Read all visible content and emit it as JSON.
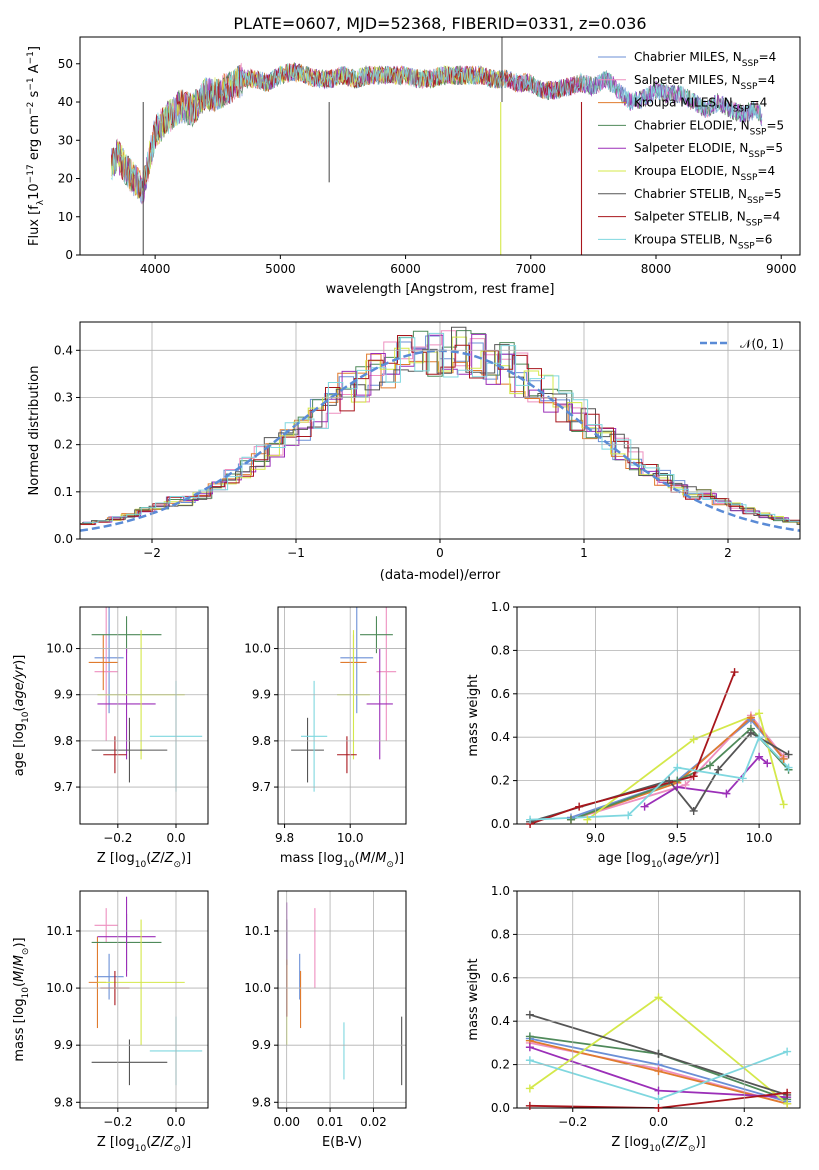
{
  "figure_title": "PLATE=0607, MJD=52368, FIBERID=0331, z=0.036",
  "colors": {
    "Chabrier MILES": "#6b8fd6",
    "Salpeter MILES": "#ee8fbf",
    "Kroupa MILES": "#e07b2e",
    "Chabrier ELODIE": "#4f8a5a",
    "Salpeter ELODIE": "#9b2fb8",
    "Kroupa ELODIE": "#d4e84a",
    "Chabrier STELIB": "#555555",
    "Salpeter STELIB": "#a8161c",
    "Kroupa STELIB": "#7fd7df",
    "Normal": "#5a8bd6"
  },
  "chart_data": [
    {
      "id": "spectrum",
      "type": "line",
      "title": "PLATE=0607, MJD=52368, FIBERID=0331, z=0.036",
      "xlabel": "wavelength [Angstrom, rest frame]",
      "ylabel": "Flux [f_λ 10^-17 erg cm^-2 s^-1 A^-1]",
      "xlim": [
        3400,
        9150
      ],
      "ylim": [
        0,
        57
      ],
      "xticks": [
        4000,
        5000,
        6000,
        7000,
        8000,
        9000
      ],
      "yticks": [
        0,
        10,
        20,
        30,
        40,
        50
      ],
      "grid": false,
      "legend_position": "top-right",
      "legend": [
        "Chabrier MILES, N_SSP=4",
        "Salpeter MILES, N_SSP=4",
        "Kroupa MILES, N_SSP=4",
        "Chabrier ELODIE, N_SSP=5",
        "Salpeter ELODIE, N_SSP=5",
        "Kroupa ELODIE, N_SSP=4",
        "Chabrier STELIB, N_SSP=5",
        "Salpeter STELIB, N_SSP=4",
        "Kroupa STELIB, N_SSP=6"
      ],
      "envelope_x": [
        3650,
        3700,
        3800,
        3900,
        4000,
        4100,
        4200,
        4300,
        4400,
        4500,
        4600,
        4700,
        4800,
        4900,
        5000,
        5100,
        5200,
        5300,
        5400,
        5500,
        5600,
        5700,
        5800,
        5900,
        6000,
        6100,
        6200,
        6300,
        6400,
        6500,
        6600,
        6700,
        6800,
        6900,
        7000,
        7100,
        7200,
        7300,
        7400,
        7500,
        7600,
        7700,
        7800,
        7900,
        8000,
        8100,
        8200,
        8300,
        8400,
        8500,
        8600,
        8700,
        8800,
        8850
      ],
      "envelope_y": [
        24,
        26,
        21,
        17,
        32,
        36,
        39,
        38,
        42,
        42,
        44,
        46,
        46,
        45,
        47,
        48,
        47,
        46,
        46,
        47,
        46,
        47,
        47,
        47,
        47,
        46,
        46,
        47,
        47,
        47,
        47,
        46,
        46,
        45,
        45,
        43,
        43,
        44,
        45,
        44,
        46,
        43,
        40,
        41,
        43,
        42,
        42,
        40,
        38,
        40,
        38,
        37,
        38,
        36
      ],
      "spikes": [
        {
          "x": 3905,
          "y": 0
        },
        {
          "x": 5390,
          "y": 19
        },
        {
          "x": 6760,
          "y": 0
        },
        {
          "x": 6770,
          "y": 57
        },
        {
          "x": 7405,
          "y": 0
        }
      ]
    },
    {
      "id": "residuals",
      "type": "bar",
      "xlabel": "(data-model)/error",
      "ylabel": "Normed distribution",
      "xlim": [
        -2.5,
        2.5
      ],
      "ylim": [
        0,
        0.46
      ],
      "xticks": [
        -2,
        -1,
        0,
        1,
        2
      ],
      "yticks": [
        0.0,
        0.1,
        0.2,
        0.3,
        0.4
      ],
      "grid": true,
      "legend_position": "top-right",
      "legend": [
        "𝒩(0, 1)"
      ],
      "bin_width": 0.1,
      "series": [
        {
          "name": "Chabrier MILES",
          "offset": 0.0
        },
        {
          "name": "Salpeter MILES",
          "offset": 0.01
        },
        {
          "name": "Kroupa MILES",
          "offset": -0.01
        },
        {
          "name": "Chabrier ELODIE",
          "offset": 0.015
        },
        {
          "name": "Salpeter ELODIE",
          "offset": 0.02
        },
        {
          "name": "Kroupa ELODIE",
          "offset": -0.015
        },
        {
          "name": "Chabrier STELIB",
          "offset": -0.02
        },
        {
          "name": "Salpeter STELIB",
          "offset": 0.005
        },
        {
          "name": "Kroupa STELIB",
          "offset": 0.025
        }
      ]
    },
    {
      "id": "age-vs-Z",
      "type": "scatter",
      "xlabel": "Z [log10(Z/Z☉)]",
      "ylabel": "age [log10(age/yr)]",
      "xlim": [
        -0.33,
        0.11
      ],
      "ylim": [
        9.62,
        10.09
      ],
      "xticks": [
        -0.2,
        0.0
      ],
      "yticks": [
        9.7,
        9.8,
        9.9,
        10.0
      ],
      "grid": true,
      "points": [
        {
          "name": "Chabrier MILES",
          "x": -0.23,
          "y": 9.98,
          "xerr": 0.05,
          "yerr": 0.12
        },
        {
          "name": "Salpeter MILES",
          "x": -0.24,
          "y": 9.95,
          "xerr": 0.04,
          "yerr": 0.15
        },
        {
          "name": "Kroupa MILES",
          "x": -0.25,
          "y": 9.97,
          "xerr": 0.05,
          "yerr": 0.06
        },
        {
          "name": "Chabrier ELODIE",
          "x": -0.17,
          "y": 10.03,
          "xerr": 0.12,
          "yerr": 0.04
        },
        {
          "name": "Salpeter ELODIE",
          "x": -0.17,
          "y": 9.88,
          "xerr": 0.1,
          "yerr": 0.12
        },
        {
          "name": "Kroupa ELODIE",
          "x": -0.12,
          "y": 9.9,
          "xerr": 0.15,
          "yerr": 0.14
        },
        {
          "name": "Chabrier STELIB",
          "x": -0.16,
          "y": 9.78,
          "xerr": 0.13,
          "yerr": 0.07
        },
        {
          "name": "Salpeter STELIB",
          "x": -0.21,
          "y": 9.77,
          "xerr": 0.04,
          "yerr": 0.04
        },
        {
          "name": "Kroupa STELIB",
          "x": 0.0,
          "y": 9.81,
          "xerr": 0.09,
          "yerr": 0.12
        }
      ]
    },
    {
      "id": "age-vs-mass",
      "type": "scatter",
      "xlabel": "mass [log10(M/M☉)]",
      "xlim": [
        9.78,
        10.17
      ],
      "ylim": [
        9.62,
        10.09
      ],
      "xticks": [
        9.8,
        10.0
      ],
      "yticks": [
        9.7,
        9.8,
        9.9,
        10.0
      ],
      "grid": true,
      "points": [
        {
          "name": "Chabrier MILES",
          "x": 10.02,
          "y": 9.98,
          "xerr": 0.05,
          "yerr": 0.12
        },
        {
          "name": "Salpeter MILES",
          "x": 10.11,
          "y": 9.95,
          "xerr": 0.03,
          "yerr": 0.15
        },
        {
          "name": "Kroupa MILES",
          "x": 10.01,
          "y": 9.97,
          "xerr": 0.04,
          "yerr": 0.06
        },
        {
          "name": "Chabrier ELODIE",
          "x": 10.08,
          "y": 10.03,
          "xerr": 0.05,
          "yerr": 0.04
        },
        {
          "name": "Salpeter ELODIE",
          "x": 10.09,
          "y": 9.88,
          "xerr": 0.04,
          "yerr": 0.12
        },
        {
          "name": "Kroupa ELODIE",
          "x": 10.01,
          "y": 9.9,
          "xerr": 0.05,
          "yerr": 0.14
        },
        {
          "name": "Chabrier STELIB",
          "x": 9.87,
          "y": 9.78,
          "xerr": 0.05,
          "yerr": 0.07
        },
        {
          "name": "Salpeter STELIB",
          "x": 9.99,
          "y": 9.77,
          "xerr": 0.03,
          "yerr": 0.04
        },
        {
          "name": "Kroupa STELIB",
          "x": 9.89,
          "y": 9.81,
          "xerr": 0.04,
          "yerr": 0.12
        }
      ]
    },
    {
      "id": "weight-vs-age",
      "type": "line",
      "xlabel": "age [log10(age/yr)]",
      "ylabel": "mass weight",
      "xlim": [
        8.52,
        10.25
      ],
      "ylim": [
        0,
        1.0
      ],
      "xticks": [
        9.0,
        9.5,
        10.0
      ],
      "yticks": [
        0.0,
        0.2,
        0.4,
        0.6,
        0.8,
        1.0
      ],
      "grid": true,
      "series": [
        {
          "name": "Chabrier MILES",
          "x": [
            8.85,
            9.5,
            9.95,
            10.15
          ],
          "y": [
            0.03,
            0.2,
            0.48,
            0.3
          ]
        },
        {
          "name": "Salpeter MILES",
          "x": [
            8.85,
            9.55,
            9.95,
            10.15
          ],
          "y": [
            0.02,
            0.18,
            0.5,
            0.31
          ]
        },
        {
          "name": "Kroupa MILES",
          "x": [
            8.85,
            9.5,
            9.95,
            10.15
          ],
          "y": [
            0.02,
            0.19,
            0.49,
            0.3
          ]
        },
        {
          "name": "Chabrier ELODIE",
          "x": [
            8.85,
            9.5,
            9.7,
            9.95,
            10.18
          ],
          "y": [
            0.02,
            0.2,
            0.27,
            0.44,
            0.25
          ]
        },
        {
          "name": "Salpeter ELODIE",
          "x": [
            9.3,
            9.5,
            9.8,
            10.0,
            10.05
          ],
          "y": [
            0.08,
            0.17,
            0.14,
            0.31,
            0.28
          ]
        },
        {
          "name": "Kroupa ELODIE",
          "x": [
            8.95,
            9.6,
            10.0,
            10.15
          ],
          "y": [
            0.02,
            0.39,
            0.51,
            0.09
          ]
        },
        {
          "name": "Chabrier STELIB",
          "x": [
            8.6,
            9.45,
            9.6,
            9.75,
            9.95,
            10.18
          ],
          "y": [
            0.01,
            0.2,
            0.06,
            0.25,
            0.42,
            0.32
          ]
        },
        {
          "name": "Salpeter STELIB",
          "x": [
            8.6,
            8.9,
            9.6,
            9.85
          ],
          "y": [
            0.0,
            0.08,
            0.22,
            0.7
          ]
        },
        {
          "name": "Kroupa STELIB",
          "x": [
            8.6,
            9.2,
            9.5,
            9.9,
            10.0,
            10.18
          ],
          "y": [
            0.02,
            0.04,
            0.26,
            0.21,
            0.4,
            0.26
          ]
        }
      ]
    },
    {
      "id": "mass-vs-Z",
      "type": "scatter",
      "xlabel": "Z [log10(Z/Z☉)]",
      "ylabel": "mass [log10(M/M☉)]",
      "xlim": [
        -0.33,
        0.11
      ],
      "ylim": [
        9.79,
        10.17
      ],
      "xticks": [
        -0.2,
        0.0
      ],
      "yticks": [
        9.8,
        9.9,
        10.0,
        10.1
      ],
      "grid": true,
      "points": [
        {
          "name": "Chabrier MILES",
          "x": -0.23,
          "y": 10.02,
          "xerr": 0.05,
          "yerr": 0.04
        },
        {
          "name": "Salpeter MILES",
          "x": -0.24,
          "y": 10.11,
          "xerr": 0.04,
          "yerr": 0.03
        },
        {
          "name": "Kroupa MILES",
          "x": -0.27,
          "y": 10.01,
          "xerr": 0.03,
          "yerr": 0.08
        },
        {
          "name": "Chabrier ELODIE",
          "x": -0.17,
          "y": 10.08,
          "xerr": 0.12,
          "yerr": 0.05
        },
        {
          "name": "Salpeter ELODIE",
          "x": -0.17,
          "y": 10.09,
          "xerr": 0.1,
          "yerr": 0.07
        },
        {
          "name": "Kroupa ELODIE",
          "x": -0.12,
          "y": 10.01,
          "xerr": 0.15,
          "yerr": 0.11
        },
        {
          "name": "Chabrier STELIB",
          "x": -0.16,
          "y": 9.87,
          "xerr": 0.13,
          "yerr": 0.04
        },
        {
          "name": "Salpeter STELIB",
          "x": -0.21,
          "y": 10.0,
          "xerr": 0.05,
          "yerr": 0.03
        },
        {
          "name": "Kroupa STELIB",
          "x": 0.0,
          "y": 9.89,
          "xerr": 0.09,
          "yerr": 0.06
        }
      ]
    },
    {
      "id": "mass-vs-EBV",
      "type": "scatter",
      "xlabel": "E(B-V)",
      "xlim": [
        -0.002,
        0.0275
      ],
      "ylim": [
        9.79,
        10.17
      ],
      "xticks": [
        0.0,
        0.01,
        0.02
      ],
      "yticks": [
        9.8,
        9.9,
        10.0,
        10.1
      ],
      "grid": true,
      "points": [
        {
          "name": "Chabrier MILES",
          "x": 0.003,
          "y": 10.02,
          "xerr": 0.0,
          "yerr": 0.04
        },
        {
          "name": "Salpeter MILES",
          "x": 0.0065,
          "y": 10.07,
          "xerr": 0.0,
          "yerr": 0.07
        },
        {
          "name": "Kroupa MILES",
          "x": 0.0032,
          "y": 9.98,
          "xerr": 0.0,
          "yerr": 0.05
        },
        {
          "name": "Chabrier ELODIE",
          "x": 0.0,
          "y": 10.08,
          "xerr": 0.0,
          "yerr": 0.04
        },
        {
          "name": "Salpeter ELODIE",
          "x": 0.0,
          "y": 10.1,
          "xerr": 0.0,
          "yerr": 0.05
        },
        {
          "name": "Kroupa ELODIE",
          "x": 0.0,
          "y": 9.97,
          "xerr": 0.0,
          "yerr": 0.07
        },
        {
          "name": "Chabrier STELIB",
          "x": 0.0265,
          "y": 9.89,
          "xerr": 0.0,
          "yerr": 0.06
        },
        {
          "name": "Salpeter STELIB",
          "x": 0.0,
          "y": 10.0,
          "xerr": 0.0,
          "yerr": 0.05
        },
        {
          "name": "Kroupa STELIB",
          "x": 0.0132,
          "y": 9.89,
          "xerr": 0.0,
          "yerr": 0.05
        }
      ]
    },
    {
      "id": "weight-vs-Z",
      "type": "line",
      "xlabel": "Z [log10(Z/Z☉)]",
      "ylabel": "mass weight",
      "xlim": [
        -0.33,
        0.33
      ],
      "ylim": [
        0,
        1.0
      ],
      "xticks": [
        -0.2,
        0.0,
        0.2
      ],
      "yticks": [
        0.0,
        0.2,
        0.4,
        0.6,
        0.8,
        1.0
      ],
      "grid": true,
      "series": [
        {
          "name": "Chabrier MILES",
          "x": [
            -0.3,
            0.0,
            0.3
          ],
          "y": [
            0.32,
            0.2,
            0.03
          ]
        },
        {
          "name": "Salpeter MILES",
          "x": [
            -0.3,
            0.0,
            0.3
          ],
          "y": [
            0.3,
            0.18,
            0.02
          ]
        },
        {
          "name": "Kroupa MILES",
          "x": [
            -0.3,
            0.0,
            0.3
          ],
          "y": [
            0.31,
            0.17,
            0.02
          ]
        },
        {
          "name": "Chabrier ELODIE",
          "x": [
            -0.3,
            0.0,
            0.3
          ],
          "y": [
            0.33,
            0.25,
            0.04
          ]
        },
        {
          "name": "Salpeter ELODIE",
          "x": [
            -0.3,
            0.0,
            0.3
          ],
          "y": [
            0.28,
            0.08,
            0.05
          ]
        },
        {
          "name": "Kroupa ELODIE",
          "x": [
            -0.3,
            0.0,
            0.3
          ],
          "y": [
            0.09,
            0.51,
            0.02
          ]
        },
        {
          "name": "Chabrier STELIB",
          "x": [
            -0.3,
            0.0,
            0.3
          ],
          "y": [
            0.43,
            0.25,
            0.06
          ]
        },
        {
          "name": "Salpeter STELIB",
          "x": [
            -0.3,
            0.0,
            0.3
          ],
          "y": [
            0.01,
            0.0,
            0.07
          ]
        },
        {
          "name": "Kroupa STELIB",
          "x": [
            -0.3,
            0.0,
            0.3
          ],
          "y": [
            0.22,
            0.04,
            0.26
          ]
        }
      ]
    }
  ]
}
